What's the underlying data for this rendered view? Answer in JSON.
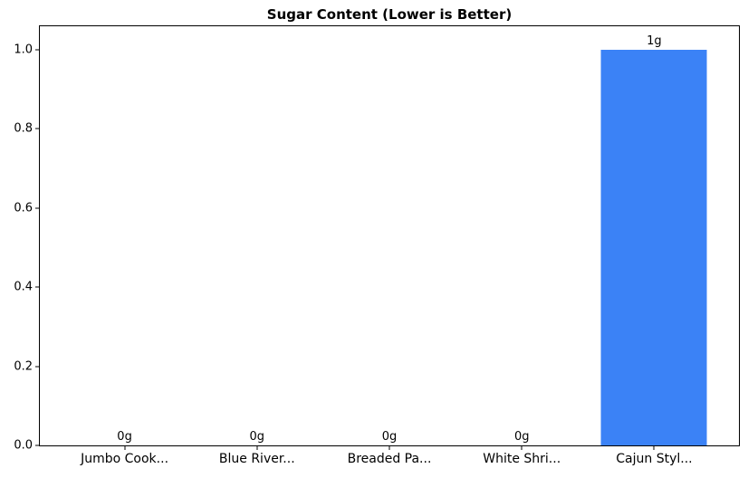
{
  "chart_data": {
    "type": "bar",
    "title": "Sugar Content (Lower is Better)",
    "categories": [
      "Jumbo Cook...",
      "Blue River...",
      "Breaded Pa...",
      "White Shri...",
      "Cajun Styl..."
    ],
    "values": [
      0,
      0,
      0,
      0,
      1
    ],
    "bar_labels": [
      "0g",
      "0g",
      "0g",
      "0g",
      "1g"
    ],
    "yticks": [
      0.0,
      0.2,
      0.4,
      0.6,
      0.8,
      1.0
    ],
    "ytick_labels": [
      "0.0",
      "0.2",
      "0.4",
      "0.6",
      "0.8",
      "1.0"
    ],
    "xlabel": "",
    "ylabel": "",
    "ylim": [
      0,
      1.059
    ],
    "xlim": [
      -0.64,
      4.64
    ],
    "bar_width": 0.8,
    "bar_color": "#3b82f6",
    "axis_color": "#000000",
    "background_color": "#ffffff",
    "grid": false,
    "legend": null
  }
}
